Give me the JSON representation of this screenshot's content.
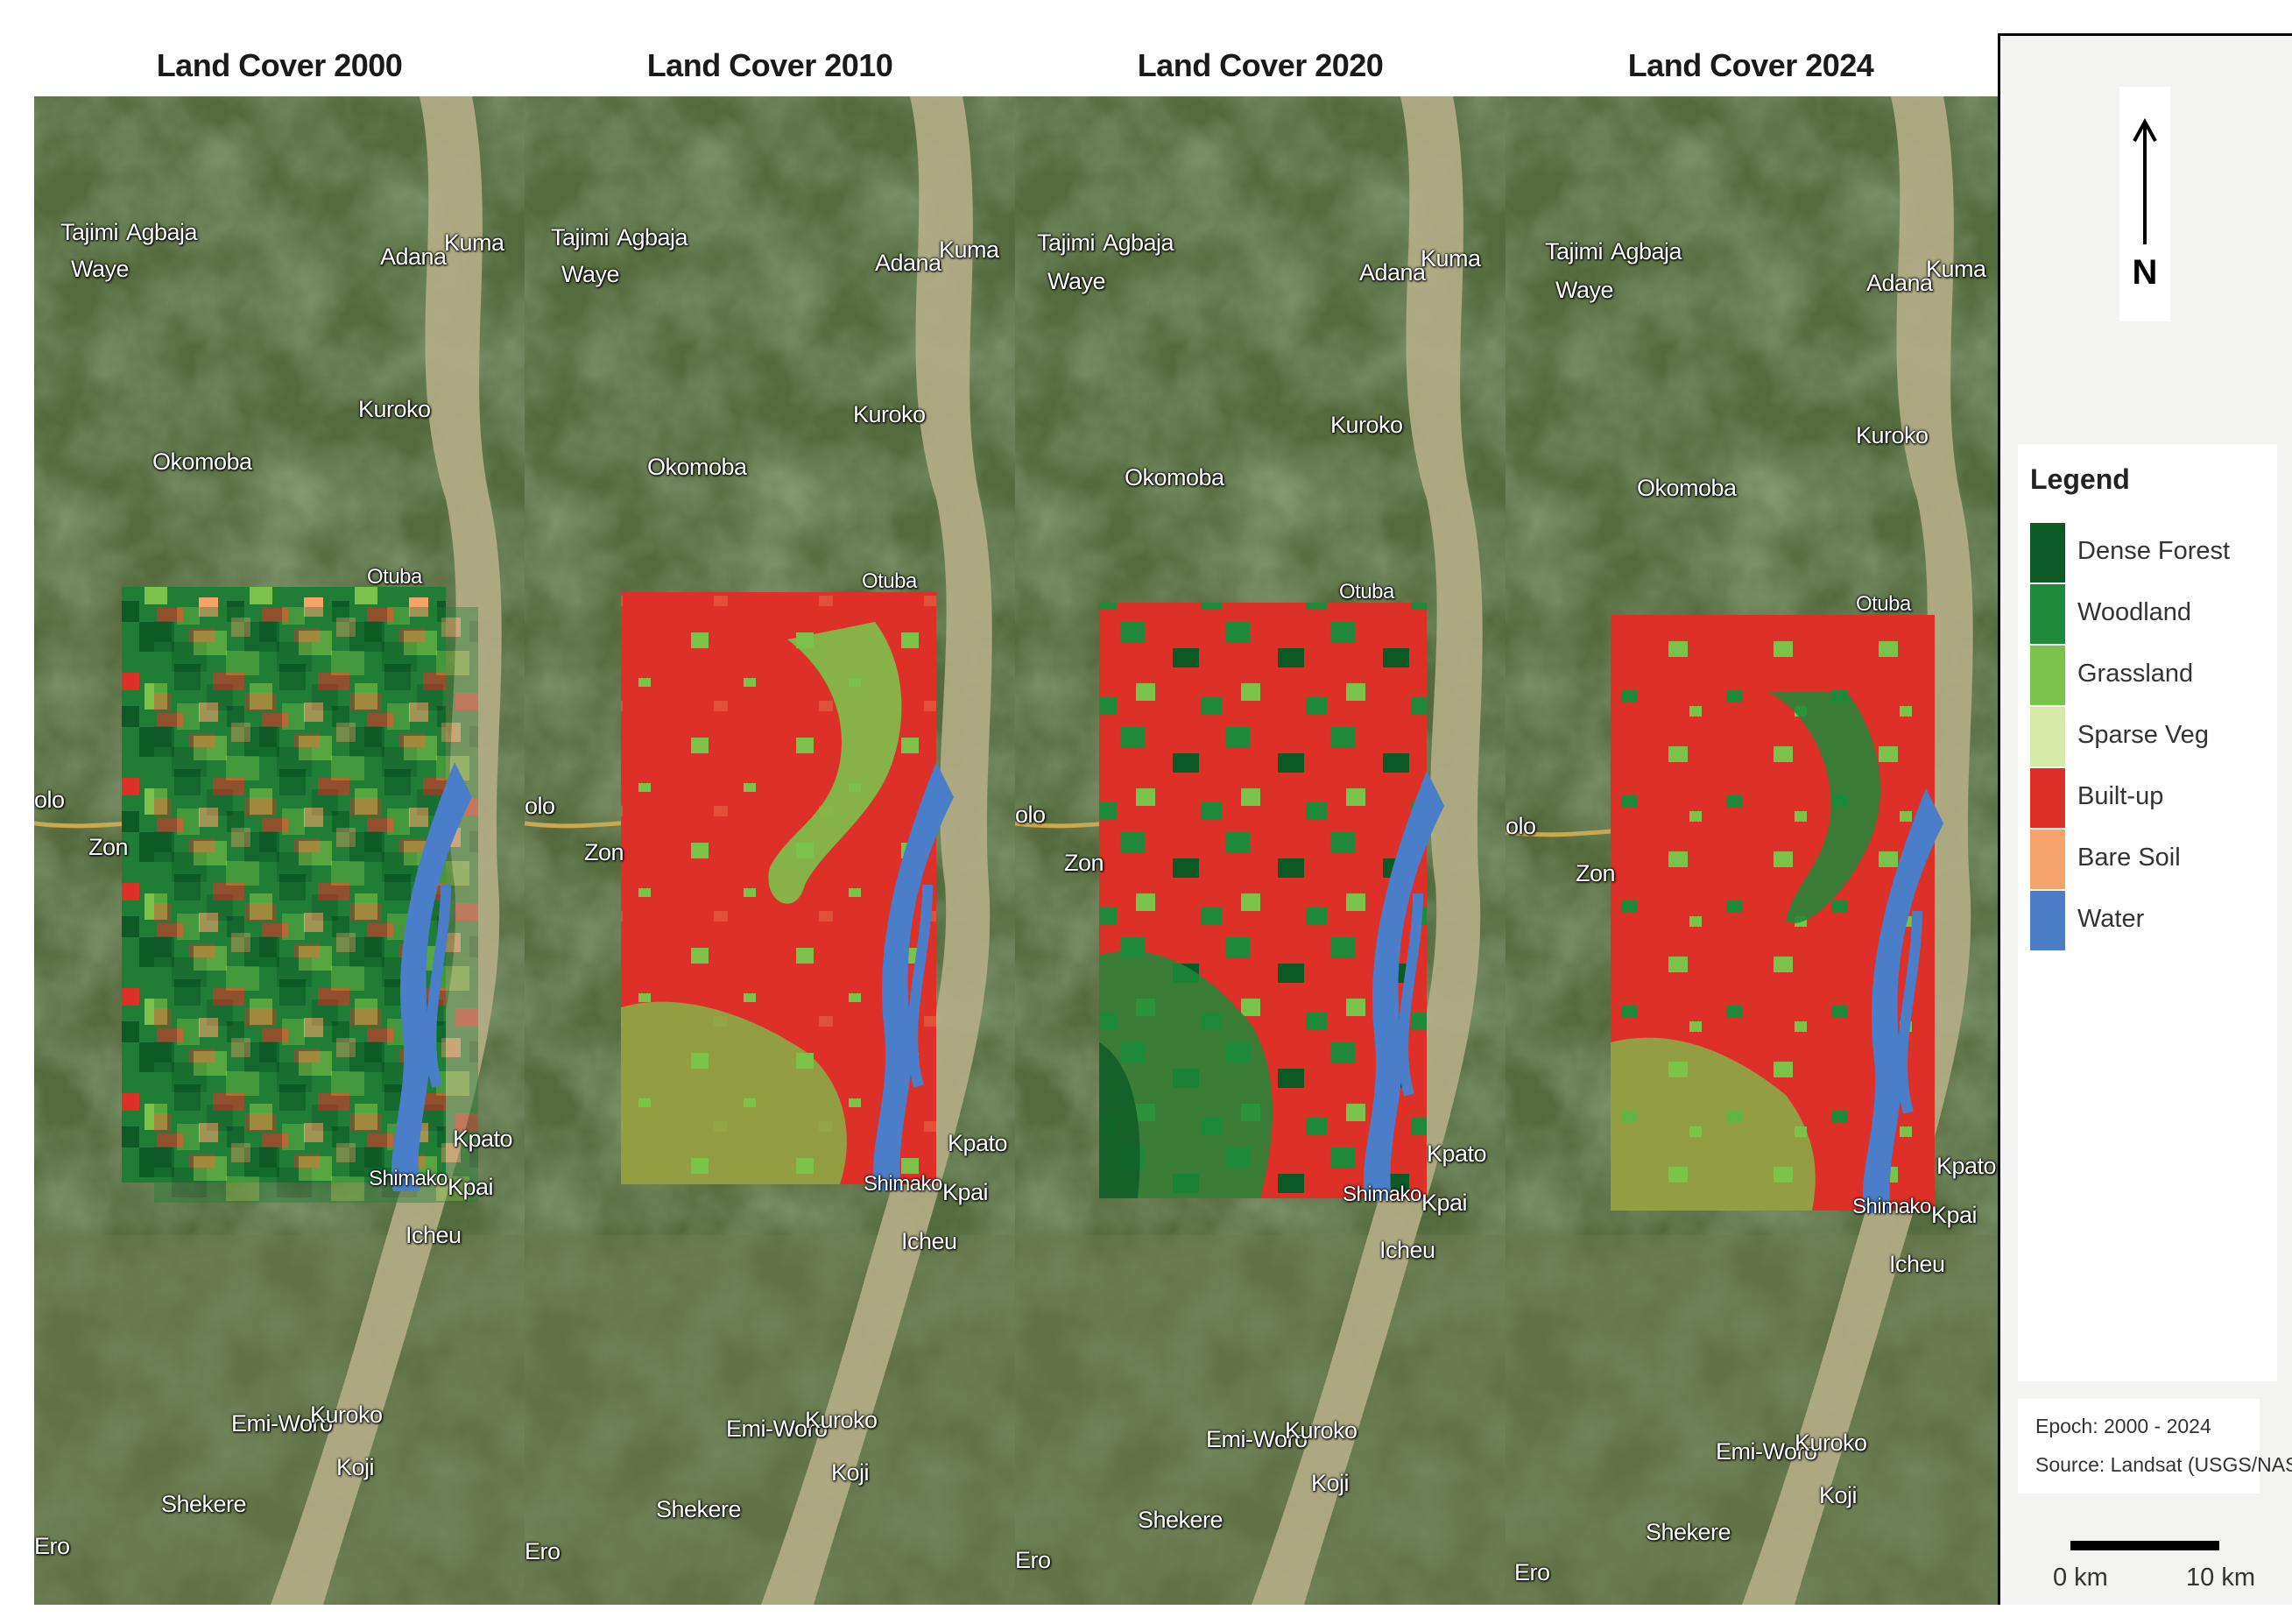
{
  "panels": [
    {
      "title": "Land Cover 2000",
      "pattern": "p2000"
    },
    {
      "title": "Land Cover 2010",
      "pattern": "p2010"
    },
    {
      "title": "Land Cover 2020",
      "pattern": "p2020"
    },
    {
      "title": "Land Cover 2024",
      "pattern": "p2024"
    }
  ],
  "places": {
    "tajimi": "Tajimi",
    "agbaja": "Agbaja",
    "waye": "Waye",
    "adana": "Adana",
    "kuma": "Kuma",
    "kuroko": "Kuroko",
    "okomoba": "Okomoba",
    "otuba": "Otuba",
    "zon": "Zon",
    "olo": "olo",
    "kpato": "Kpato",
    "kpai": "Kpai",
    "shimako": "Shimako",
    "icheu": "Icheu",
    "emiworo": "Emi-Woro",
    "kuroko2": "Kuroko",
    "koji": "Koji",
    "shekere": "Shekere",
    "ero": "Ero"
  },
  "legend": {
    "title": "Legend",
    "items": [
      {
        "label": "Dense Forest",
        "color": "#0d5a25"
      },
      {
        "label": "Woodland",
        "color": "#1e8a3a"
      },
      {
        "label": "Grassland",
        "color": "#7bc24a"
      },
      {
        "label": "Sparse Veg",
        "color": "#d4eaa6"
      },
      {
        "label": "Built-up",
        "color": "#dc3028"
      },
      {
        "label": "Bare Soil",
        "color": "#f5a36a"
      },
      {
        "label": "Water",
        "color": "#4a7ec8"
      }
    ]
  },
  "north": "N",
  "info": {
    "epoch": "Epoch: 2000 - 2024",
    "source": "Source: Landsat (USGS/NASA)"
  },
  "scale": {
    "start": "0 km",
    "end": "10 km"
  }
}
